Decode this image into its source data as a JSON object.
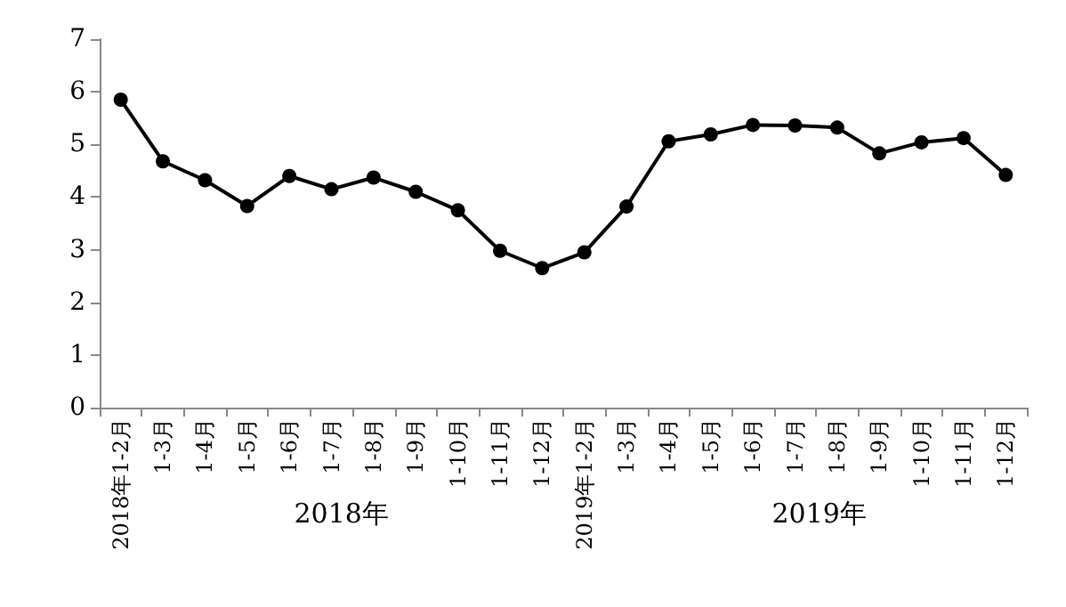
{
  "chart_data": {
    "type": "line",
    "categories": [
      "2018年1-2月",
      "1-3月",
      "1-4月",
      "1-5月",
      "1-6月",
      "1-7月",
      "1-8月",
      "1-9月",
      "1-10月",
      "1-11月",
      "1-12月",
      "2019年1-2月",
      "1-3月",
      "1-4月",
      "1-5月",
      "1-6月",
      "1-7月",
      "1-8月",
      "1-9月",
      "1-10月",
      "1-11月",
      "1-12月"
    ],
    "series": [
      {
        "color": "#000000",
        "values": [
          5.85,
          4.68,
          4.32,
          3.83,
          4.4,
          4.15,
          4.37,
          4.1,
          3.75,
          2.98,
          2.65,
          2.95,
          3.82,
          5.06,
          5.19,
          5.37,
          5.36,
          5.32,
          4.83,
          5.04,
          5.12,
          4.42
        ]
      }
    ],
    "ylim": [
      0,
      7
    ],
    "yticks": [
      0,
      1,
      2,
      3,
      4,
      5,
      6,
      7
    ],
    "grid": false,
    "marker": "circle",
    "line_style": "solid",
    "annotations": [
      "2018年",
      "2019年"
    ]
  }
}
